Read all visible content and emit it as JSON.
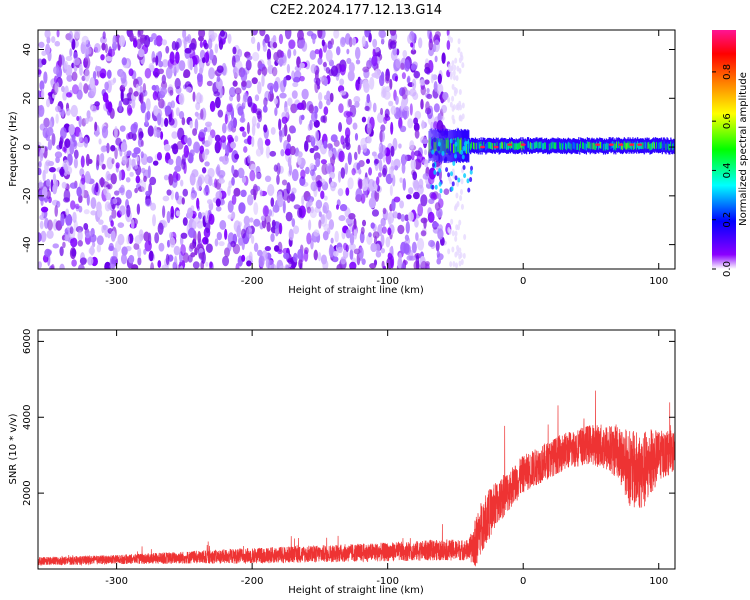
{
  "title": "C2E2.2024.177.12.13.G14",
  "chart_data": [
    {
      "type": "heatmap",
      "xlabel": "Height of straight line (km)",
      "ylabel": "Frequency (Hz)",
      "xlim": [
        -358,
        112
      ],
      "ylim": [
        -50,
        48
      ],
      "xticks": [
        -300,
        -200,
        -100,
        0,
        100
      ],
      "yticks": [
        -40,
        -20,
        0,
        20,
        40
      ],
      "xtick_labels": [
        "-300",
        "-200",
        "-100",
        "0",
        "100"
      ],
      "ytick_labels": [
        "-40",
        "-20",
        "0",
        "20",
        "40"
      ],
      "noise_extent_x": [
        -358,
        -55
      ],
      "signal_band": {
        "x_start": -70,
        "x_end": 112,
        "frequency_center": 0.5,
        "half_width": 3
      },
      "colorbar": {
        "label": "Normalized spectral amplitude",
        "range": [
          0,
          0.97
        ],
        "ticks": [
          0.0,
          0.2,
          0.4,
          0.6,
          0.8
        ],
        "tick_labels": [
          "0.0",
          "0.2",
          "0.4",
          "0.6",
          "0.8"
        ],
        "colors": [
          "#ffffff",
          "#8b00ff",
          "#0000ff",
          "#00ffff",
          "#00ff00",
          "#ffff00",
          "#ff8000",
          "#ff0000",
          "#ff1493"
        ]
      },
      "grid": false
    },
    {
      "type": "line",
      "xlabel": "Height of straight line (km)",
      "ylabel": "SNR (10 * v/v)",
      "xlim": [
        -358,
        112
      ],
      "ylim": [
        0,
        6300
      ],
      "xticks": [
        -300,
        -200,
        -100,
        0,
        100
      ],
      "yticks": [
        2000,
        4000,
        6000
      ],
      "xtick_labels": [
        "-300",
        "-200",
        "-100",
        "0",
        "100"
      ],
      "ytick_labels": [
        "2000",
        "4000",
        "6000"
      ],
      "color": "#ee3333",
      "grid": false,
      "profile": {
        "x": [
          -358,
          -300,
          -250,
          -200,
          -150,
          -100,
          -60,
          -40,
          -35,
          -30,
          -20,
          0,
          30,
          50,
          70,
          80,
          90,
          100,
          112
        ],
        "baseline": [
          200,
          250,
          300,
          350,
          400,
          450,
          500,
          500,
          700,
          1200,
          1700,
          2500,
          3100,
          3300,
          3100,
          2600,
          2600,
          3000,
          3100
        ],
        "spread": [
          200,
          220,
          300,
          380,
          420,
          450,
          500,
          500,
          1200,
          1300,
          1100,
          900,
          900,
          950,
          1300,
          1900,
          1900,
          1200,
          1000
        ]
      }
    }
  ]
}
